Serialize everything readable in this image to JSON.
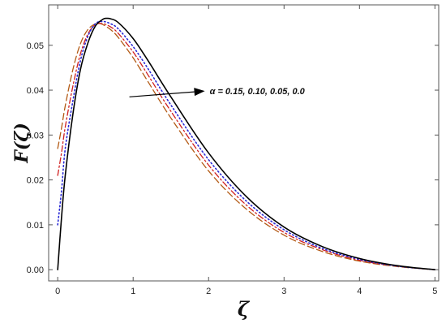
{
  "chart_data": {
    "type": "line",
    "xlabel": "ζ",
    "ylabel": "F(ζ)",
    "xlim": [
      -0.12,
      5.05
    ],
    "ylim": [
      -0.0025,
      0.059
    ],
    "xticks": [
      0,
      1,
      2,
      3,
      4,
      5
    ],
    "xtick_labels": [
      "0",
      "1",
      "2",
      "3",
      "4",
      "5"
    ],
    "yticks": [
      0.0,
      0.01,
      0.02,
      0.03,
      0.04,
      0.05
    ],
    "ytick_labels": [
      "0.00",
      "0.01",
      "0.02",
      "0.03",
      "0.04",
      "0.05"
    ],
    "grid": false,
    "frame": "box",
    "annotation": {
      "text": "α = 0.15, 0.10, 0.05, 0.0",
      "arrow_from": [
        0.95,
        0.0385
      ],
      "arrow_to": [
        1.95,
        0.0398
      ]
    },
    "series": [
      {
        "style": "solid",
        "color": "#000000",
        "x": [
          0,
          0.05,
          0.1,
          0.2,
          0.3,
          0.4,
          0.5,
          0.6,
          0.65,
          0.7,
          0.8,
          1.0,
          1.2,
          1.5,
          2.0,
          2.5,
          3.0,
          3.5,
          4.0,
          4.5,
          5.0
        ],
        "y": [
          0.0,
          0.0115,
          0.021,
          0.0345,
          0.0445,
          0.0505,
          0.0543,
          0.0558,
          0.056,
          0.0559,
          0.0551,
          0.0515,
          0.0465,
          0.0385,
          0.026,
          0.0163,
          0.0095,
          0.0052,
          0.0025,
          0.0009,
          0.0
        ]
      },
      {
        "style": "dotted",
        "color": "#2a2ad6",
        "x": [
          0,
          0.05,
          0.1,
          0.2,
          0.3,
          0.4,
          0.5,
          0.6,
          0.7,
          0.8,
          1.0,
          1.2,
          1.5,
          2.0,
          2.5,
          3.0,
          3.5,
          4.0,
          4.5,
          5.0
        ],
        "y": [
          0.01,
          0.0175,
          0.027,
          0.0375,
          0.0465,
          0.052,
          0.0548,
          0.0553,
          0.0548,
          0.0537,
          0.0497,
          0.0447,
          0.0367,
          0.0245,
          0.0153,
          0.0089,
          0.0048,
          0.0023,
          0.0008,
          0.0
        ]
      },
      {
        "style": "dashdot",
        "color": "#d02020",
        "x": [
          0,
          0.05,
          0.1,
          0.2,
          0.3,
          0.4,
          0.5,
          0.6,
          0.7,
          0.8,
          1.0,
          1.2,
          1.5,
          2.0,
          2.5,
          3.0,
          3.5,
          4.0,
          4.5,
          5.0
        ],
        "y": [
          0.021,
          0.026,
          0.0318,
          0.0408,
          0.048,
          0.0525,
          0.0546,
          0.0548,
          0.0541,
          0.0527,
          0.0485,
          0.0433,
          0.0353,
          0.0233,
          0.0144,
          0.0083,
          0.0045,
          0.0021,
          0.0008,
          0.0
        ]
      },
      {
        "style": "dashed",
        "color": "#b35a14",
        "x": [
          0,
          0.05,
          0.1,
          0.2,
          0.3,
          0.4,
          0.5,
          0.55,
          0.6,
          0.7,
          0.8,
          1.0,
          1.2,
          1.5,
          2.0,
          2.5,
          3.0,
          3.5,
          4.0,
          4.5,
          5.0
        ],
        "y": [
          0.027,
          0.0315,
          0.0365,
          0.0445,
          0.0503,
          0.0535,
          0.0548,
          0.0549,
          0.0546,
          0.0535,
          0.0518,
          0.0472,
          0.0418,
          0.0338,
          0.022,
          0.0135,
          0.0077,
          0.0041,
          0.0019,
          0.0007,
          0.0
        ]
      }
    ]
  }
}
